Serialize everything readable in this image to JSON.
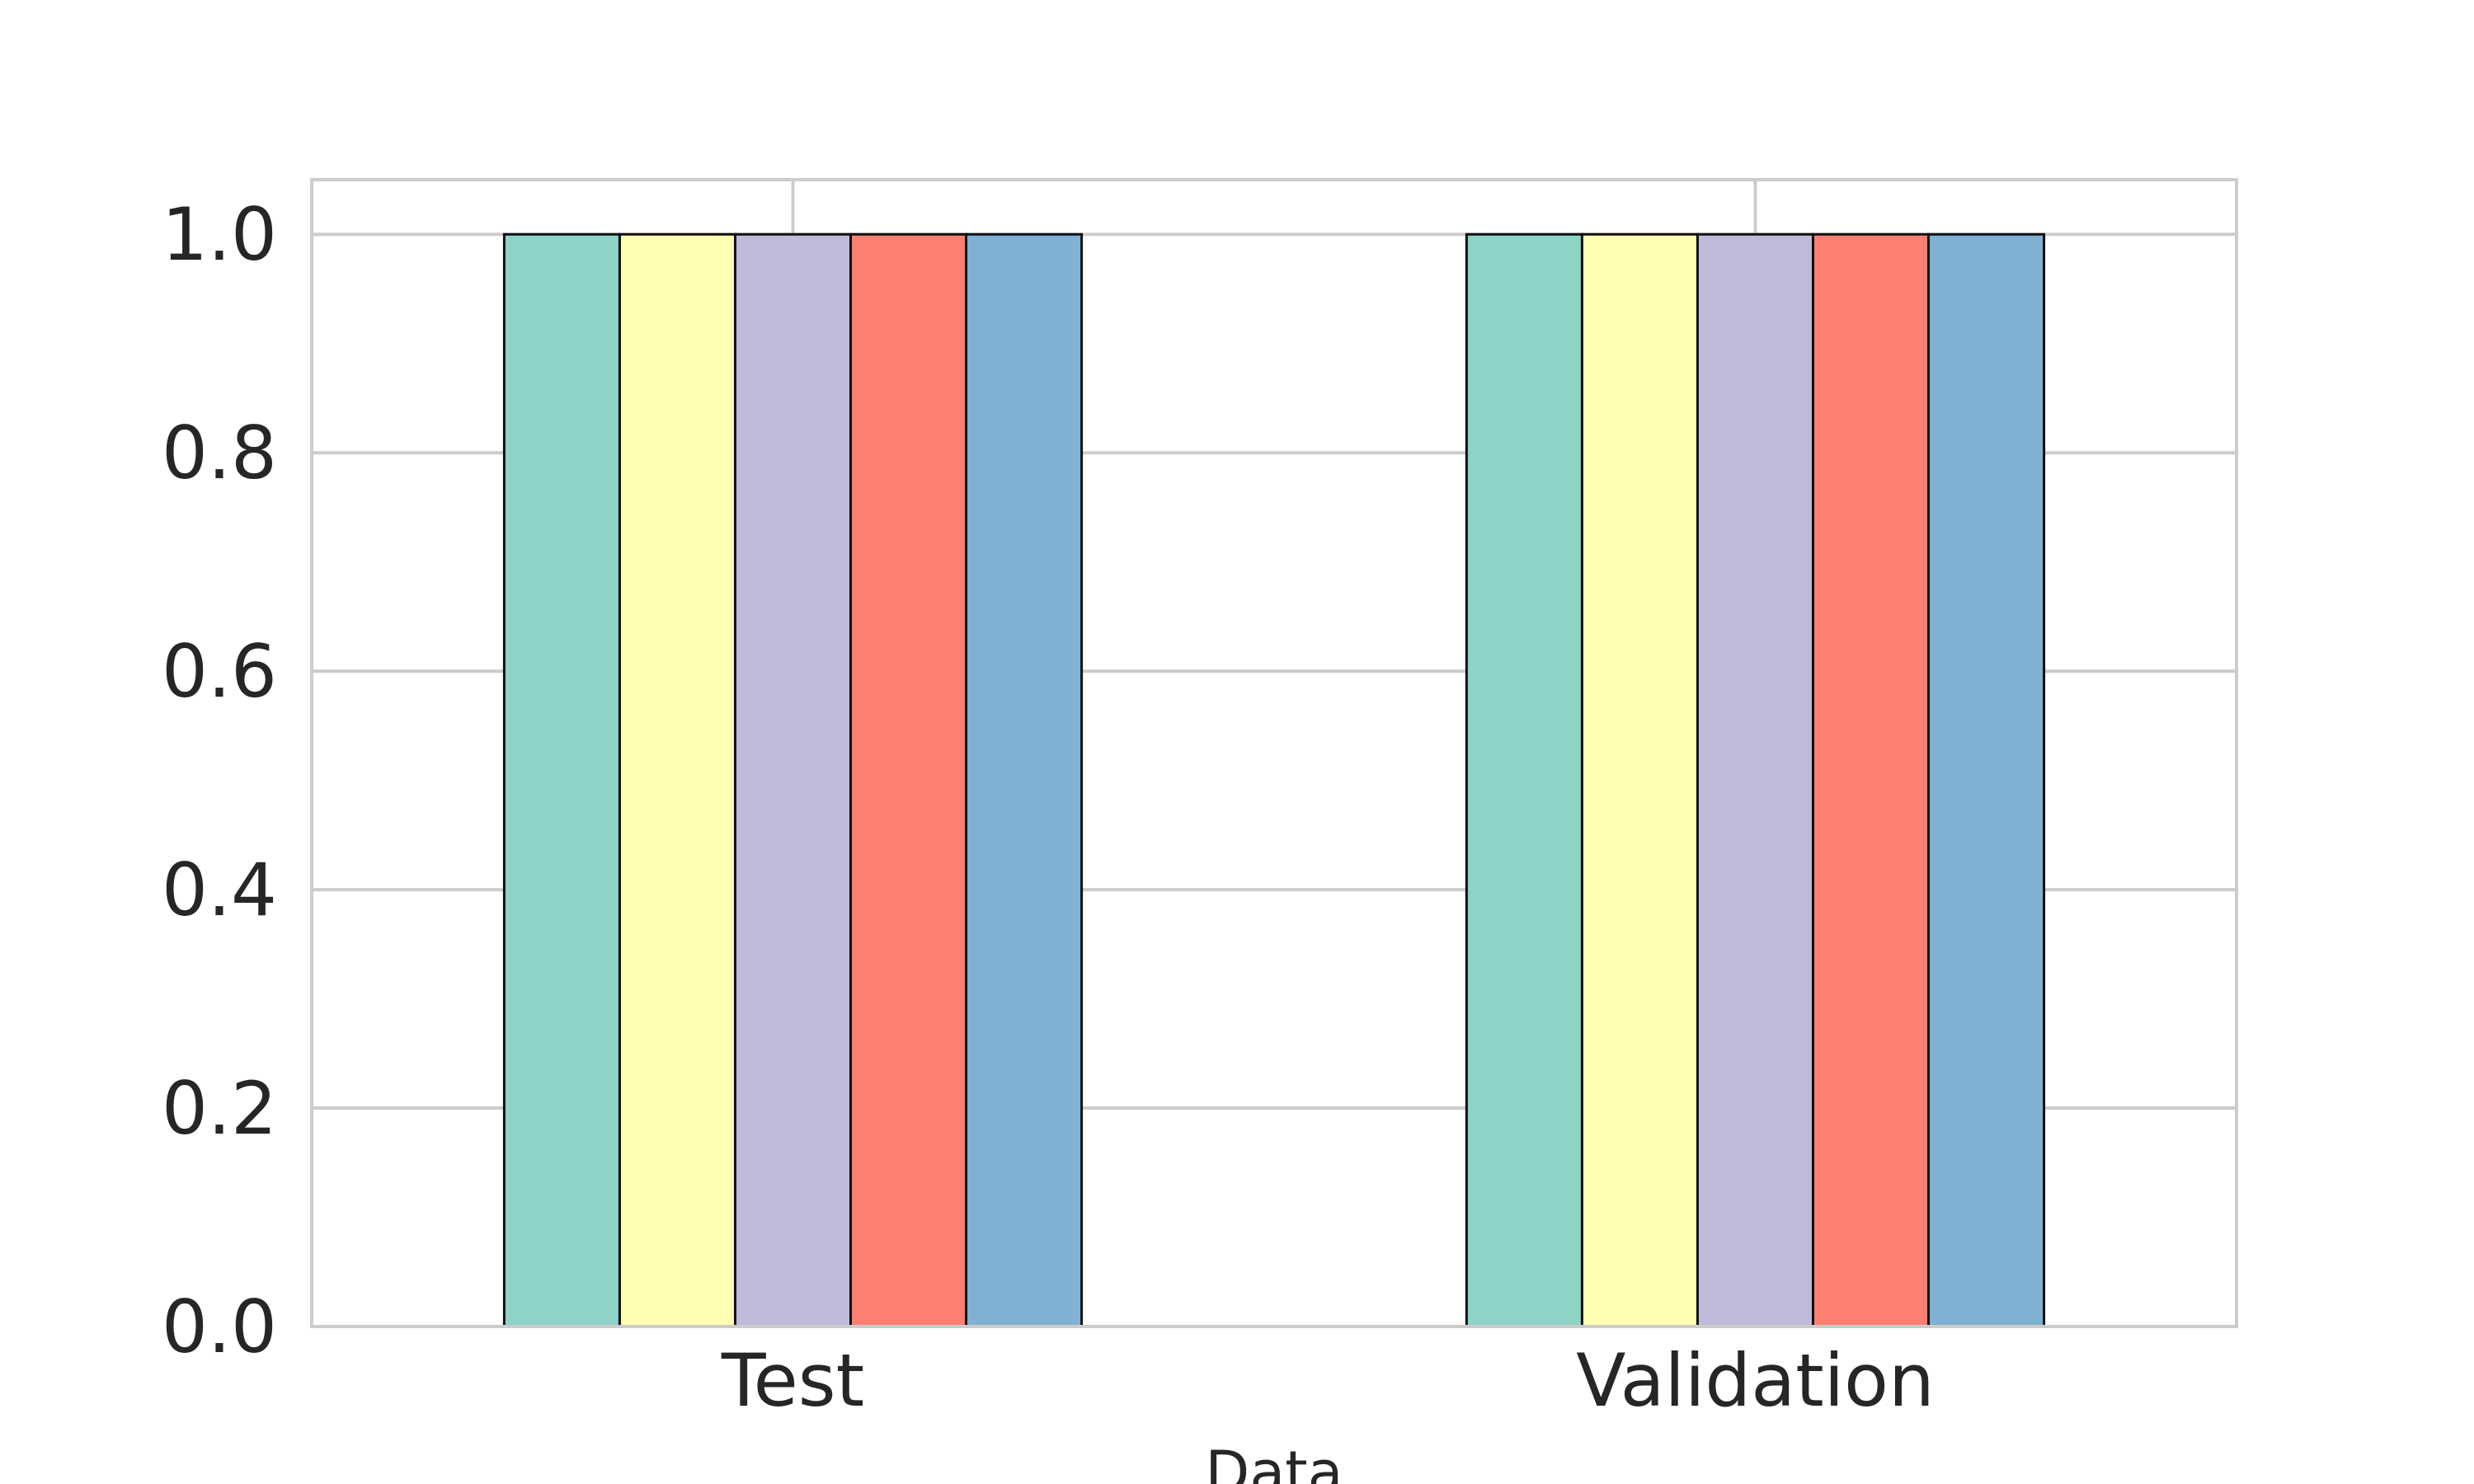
{
  "chart_data": {
    "type": "bar",
    "categories": [
      "Test",
      "Validation"
    ],
    "series": [
      {
        "values": [
          1.0,
          1.0
        ],
        "color": "#8dd3c7"
      },
      {
        "values": [
          1.0,
          1.0
        ],
        "color": "#ffffb3"
      },
      {
        "values": [
          1.0,
          1.0
        ],
        "color": "#bebada"
      },
      {
        "values": [
          1.0,
          1.0
        ],
        "color": "#fb8072"
      },
      {
        "values": [
          1.0,
          1.0
        ],
        "color": "#80b1d3"
      }
    ],
    "title": "",
    "xlabel": "Data",
    "ylabel": "",
    "ylim": [
      0,
      1.05
    ],
    "yticks": [
      0.0,
      0.2,
      0.4,
      0.6,
      0.8,
      1.0
    ],
    "ytick_labels": [
      "0.0",
      "0.2",
      "0.4",
      "0.6",
      "0.8",
      "1.0"
    ],
    "grid": true,
    "legend": "none"
  }
}
